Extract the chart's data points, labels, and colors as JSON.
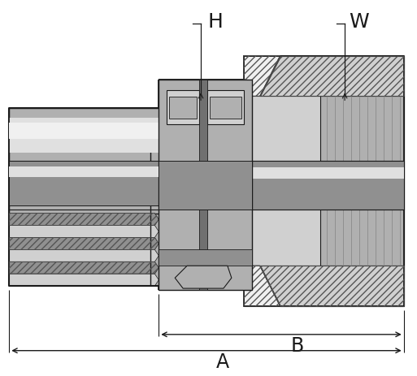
{
  "bg": "#ffffff",
  "lc": "#1a1a1a",
  "c_light": "#d0d0d0",
  "c_mid": "#b0b0b0",
  "c_dark": "#909090",
  "c_darker": "#707070",
  "c_white": "#f0f0f0",
  "c_vlight": "#e0e0e0",
  "c_shadow": "#808080",
  "hatch_col": "#555555",
  "label_H": "H",
  "label_W": "W",
  "label_A": "A",
  "label_B": "B",
  "fs": 15
}
